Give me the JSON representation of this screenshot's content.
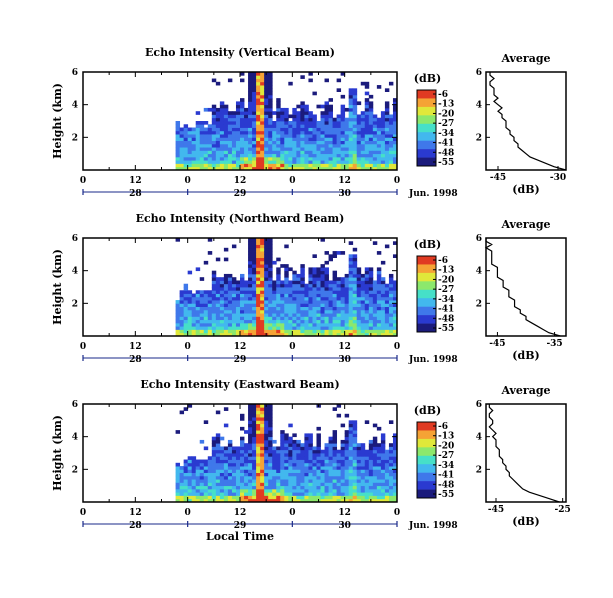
{
  "colors": {
    "palette": [
      "#1b1b7c",
      "#2a3ad0",
      "#3f78ea",
      "#42b8ee",
      "#46e0c8",
      "#8ce86c",
      "#e0e83a",
      "#f5a335",
      "#e03a22"
    ],
    "axis": "#000000",
    "date_axis": "#1a2a8a"
  },
  "shared": {
    "ylabel": "Height (km)",
    "xlabel": "Local Time",
    "month_label": "Jun. 1998",
    "colorbar_unit": "(dB)",
    "average_title": "Average",
    "average_xlabel": "(dB)",
    "hour_ticks": [
      "0",
      "12",
      "0",
      "12",
      "0",
      "12",
      "0"
    ],
    "date_ticks": [
      "28",
      "29",
      "30"
    ],
    "colorbar_ticks": [
      "-6",
      "-13",
      "-20",
      "-27",
      "-34",
      "-41",
      "-48",
      "-55"
    ]
  },
  "chart_data": [
    {
      "type": "heatmap",
      "title": "Echo Intensity (Vertical Beam)",
      "ylabel": "Height (km)",
      "y_ticks": [
        "6",
        "4",
        "2"
      ],
      "ylim_km": [
        0,
        6
      ],
      "xlim_hours_from_jun28_00": [
        0,
        72
      ],
      "colorbar": {
        "unit": "(dB)",
        "ticks": [
          -6,
          -13,
          -20,
          -27,
          -34,
          -41,
          -48,
          -55
        ]
      },
      "average_profile": {
        "title": "Average",
        "xlabel": "(dB)",
        "x_tick_labels": [
          "-45",
          "-30"
        ],
        "xlim": [
          -48,
          -28
        ],
        "y_ticks": [
          "6",
          "4",
          "2"
        ],
        "height_km": [
          0.0,
          0.2,
          0.4,
          0.6,
          0.8,
          1.0,
          1.2,
          1.4,
          1.6,
          1.8,
          2.0,
          2.2,
          2.4,
          2.6,
          2.8,
          3.0,
          3.2,
          3.4,
          3.6,
          3.8,
          4.0,
          4.2,
          4.4,
          4.6,
          4.8,
          5.0,
          5.2,
          5.4,
          5.6,
          5.8,
          6.0
        ],
        "intensity_db": [
          -28,
          -31,
          -33,
          -35,
          -37,
          -38,
          -39,
          -40,
          -40,
          -41,
          -41,
          -42,
          -42,
          -43,
          -43,
          -43,
          -44,
          -44,
          -45,
          -44,
          -45,
          -46,
          -45,
          -46,
          -46,
          -46,
          -47,
          -47,
          -46,
          -47,
          -47
        ]
      }
    },
    {
      "type": "heatmap",
      "title": "Echo Intensity (Northward Beam)",
      "ylabel": "Height (km)",
      "y_ticks": [
        "6",
        "4",
        "2"
      ],
      "ylim_km": [
        0,
        6
      ],
      "xlim_hours_from_jun28_00": [
        0,
        72
      ],
      "colorbar": {
        "unit": "(dB)",
        "ticks": [
          -6,
          -13,
          -20,
          -27,
          -34,
          -41,
          -48,
          -55
        ]
      },
      "average_profile": {
        "title": "Average",
        "xlabel": "(dB)",
        "x_tick_labels": [
          "-45",
          "-35"
        ],
        "xlim": [
          -47,
          -33
        ],
        "y_ticks": [
          "6",
          "4",
          "2"
        ],
        "height_km": [
          0.0,
          0.2,
          0.4,
          0.6,
          0.8,
          1.0,
          1.2,
          1.4,
          1.6,
          1.8,
          2.0,
          2.2,
          2.4,
          2.6,
          2.8,
          3.0,
          3.2,
          3.4,
          3.6,
          3.8,
          4.0,
          4.2,
          4.4,
          4.6,
          4.8,
          5.0,
          5.2,
          5.4,
          5.6,
          5.8,
          6.0
        ],
        "intensity_db": [
          -34,
          -36,
          -37,
          -38,
          -39,
          -40,
          -40,
          -41,
          -41,
          -42,
          -42,
          -42,
          -43,
          -43,
          -43,
          -44,
          -44,
          -44,
          -45,
          -45,
          -45,
          -45,
          -46,
          -46,
          -46,
          -46,
          -46,
          -47,
          -46,
          -47,
          -47
        ]
      }
    },
    {
      "type": "heatmap",
      "title": "Echo Intensity (Eastward Beam)",
      "ylabel": "Height (km)",
      "xlabel": "Local Time",
      "y_ticks": [
        "6",
        "4",
        "2"
      ],
      "ylim_km": [
        0,
        6
      ],
      "xlim_hours_from_jun28_00": [
        0,
        72
      ],
      "colorbar": {
        "unit": "(dB)",
        "ticks": [
          -6,
          -13,
          -20,
          -27,
          -34,
          -41,
          -48,
          -55
        ]
      },
      "average_profile": {
        "title": "Average",
        "xlabel": "(dB)",
        "x_tick_labels": [
          "-45",
          "-25"
        ],
        "xlim": [
          -48,
          -24
        ],
        "y_ticks": [
          "6",
          "4",
          "2"
        ],
        "height_km": [
          0.0,
          0.2,
          0.4,
          0.6,
          0.8,
          1.0,
          1.2,
          1.4,
          1.6,
          1.8,
          2.0,
          2.2,
          2.4,
          2.6,
          2.8,
          3.0,
          3.2,
          3.4,
          3.6,
          3.8,
          4.0,
          4.2,
          4.4,
          4.6,
          4.8,
          5.0,
          5.2,
          5.4,
          5.6,
          5.8,
          6.0
        ],
        "intensity_db": [
          -26,
          -29,
          -32,
          -35,
          -37,
          -38,
          -39,
          -40,
          -41,
          -41,
          -42,
          -42,
          -43,
          -43,
          -44,
          -44,
          -44,
          -45,
          -45,
          -45,
          -46,
          -45,
          -46,
          -47,
          -46,
          -46,
          -47,
          -47,
          -46,
          -47,
          -47
        ]
      }
    }
  ]
}
